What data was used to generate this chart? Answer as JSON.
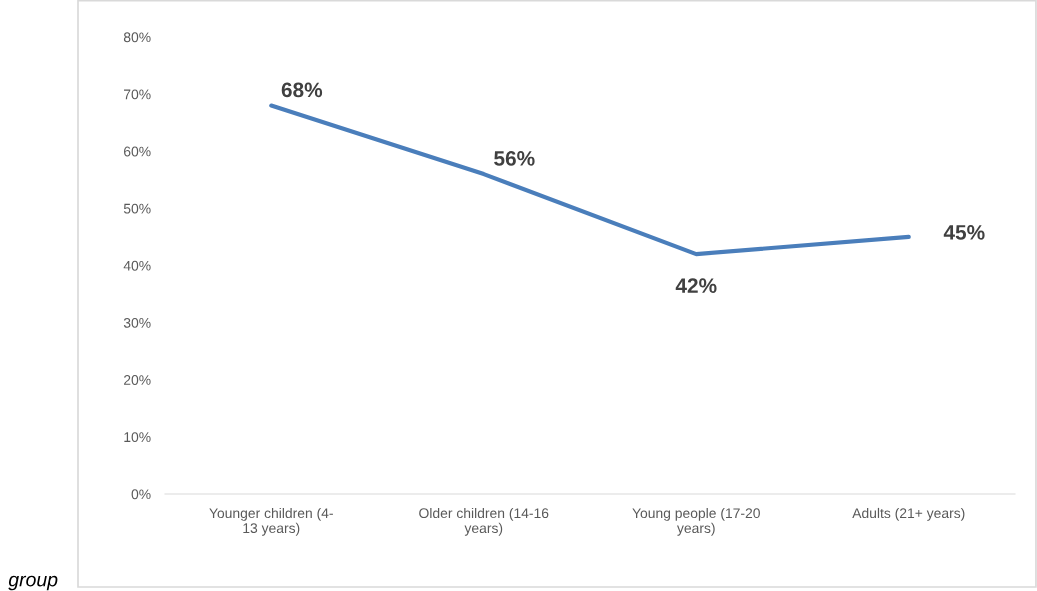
{
  "chart_data": {
    "type": "line",
    "categories": [
      "Younger children (4-13 years)",
      "Older children (14-16 years)",
      "Young people (17-20 years)",
      "Adults (21+ years)"
    ],
    "series": [
      {
        "color": "#4a7ebb",
        "values": [
          68,
          56,
          42,
          45
        ],
        "value_labels": [
          "68%",
          "56%",
          "42%",
          "45%"
        ]
      }
    ],
    "ylim": [
      0,
      80
    ],
    "yticks": [
      {
        "value": 0,
        "label": "0%"
      },
      {
        "value": 10,
        "label": "10%"
      },
      {
        "value": 20,
        "label": "20%"
      },
      {
        "value": 30,
        "label": "30%"
      },
      {
        "value": 40,
        "label": "40%"
      },
      {
        "value": 50,
        "label": "50%"
      },
      {
        "value": 60,
        "label": "60%"
      },
      {
        "value": 70,
        "label": "70%"
      },
      {
        "value": 80,
        "label": "80%"
      }
    ],
    "grid": false,
    "marker": "none",
    "line_style": "solid",
    "annotations": [
      "group"
    ]
  }
}
